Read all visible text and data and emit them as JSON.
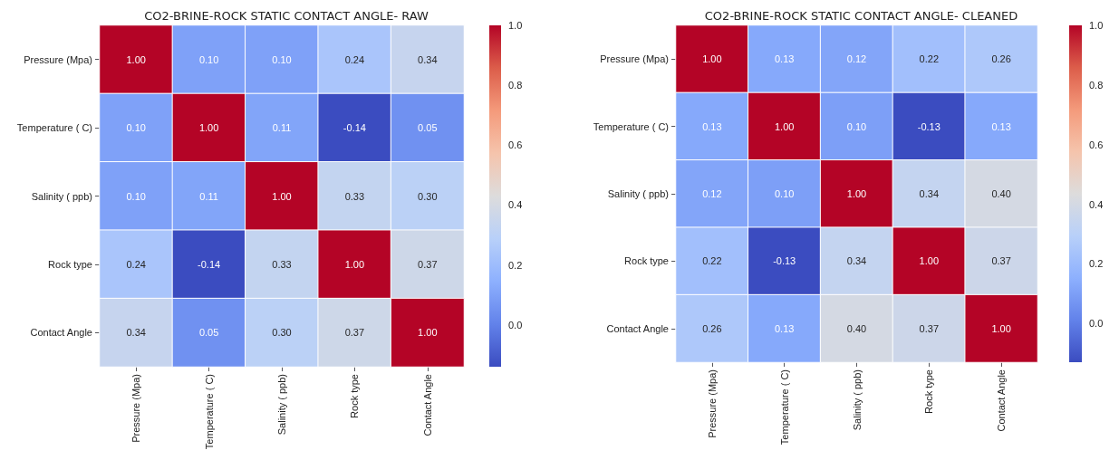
{
  "chart_data": [
    {
      "type": "heatmap",
      "title": "CO2-BRINE-ROCK STATIC CONTACT ANGLE- RAW",
      "categories": [
        "Pressure (Mpa)",
        "Temperature ( C)",
        "Salinity ( ppb)",
        "Rock type",
        "Contact Angle"
      ],
      "y_categories": [
        "Pressure (Mpa)",
        "Temperature ( C)",
        "Salinity ( ppb)",
        "Rock type",
        "Contact Angle"
      ],
      "cells": [
        [
          1.0,
          0.1,
          0.1,
          0.24,
          0.34
        ],
        [
          0.1,
          1.0,
          0.11,
          -0.14,
          0.05
        ],
        [
          0.1,
          0.11,
          1.0,
          0.33,
          0.3
        ],
        [
          0.24,
          -0.14,
          0.33,
          1.0,
          0.37
        ],
        [
          0.34,
          0.05,
          0.3,
          0.37,
          1.0
        ]
      ],
      "cell_labels": [
        [
          "1.00",
          "0.10",
          "0.10",
          "0.24",
          "0.34"
        ],
        [
          "0.10",
          "1.00",
          "0.11",
          "-0.14",
          "0.05"
        ],
        [
          "0.10",
          "0.11",
          "1.00",
          "0.33",
          "0.30"
        ],
        [
          "0.24",
          "-0.14",
          "0.33",
          "1.00",
          "0.37"
        ],
        [
          "0.34",
          "0.05",
          "0.30",
          "0.37",
          "1.00"
        ]
      ],
      "clim": [
        -0.14,
        1.0
      ],
      "cticks": [
        {
          "value": 0,
          "label": "0.0"
        },
        {
          "value": 0.2,
          "label": "0.2"
        },
        {
          "value": 0.4,
          "label": "0.4"
        },
        {
          "value": 0.6,
          "label": "0.6"
        },
        {
          "value": 0.8,
          "label": "0.8"
        },
        {
          "value": 1,
          "label": "1.0"
        }
      ]
    },
    {
      "type": "heatmap",
      "title": "CO2-BRINE-ROCK STATIC CONTACT ANGLE- CLEANED",
      "categories": [
        "Pressure (Mpa)",
        "Temperature ( C)",
        "Salinity ( ppb)",
        "Rock type",
        "Contact Angle"
      ],
      "y_categories": [
        "Pressure (Mpa)",
        "Temperature ( C)",
        "Salinity ( ppb)",
        "Rock type",
        "Contact Angle"
      ],
      "cells": [
        [
          1.0,
          0.13,
          0.12,
          0.22,
          0.26
        ],
        [
          0.13,
          1.0,
          0.1,
          -0.13,
          0.13
        ],
        [
          0.12,
          0.1,
          1.0,
          0.34,
          0.4
        ],
        [
          0.22,
          -0.13,
          0.34,
          1.0,
          0.37
        ],
        [
          0.26,
          0.13,
          0.4,
          0.37,
          1.0
        ]
      ],
      "cell_labels": [
        [
          "1.00",
          "0.13",
          "0.12",
          "0.22",
          "0.26"
        ],
        [
          "0.13",
          "1.00",
          "0.10",
          "-0.13",
          "0.13"
        ],
        [
          "0.12",
          "0.10",
          "1.00",
          "0.34",
          "0.40"
        ],
        [
          "0.22",
          "-0.13",
          "0.34",
          "1.00",
          "0.37"
        ],
        [
          "0.26",
          "0.13",
          "0.40",
          "0.37",
          "1.00"
        ]
      ],
      "clim": [
        -0.13,
        1.0
      ],
      "cticks": [
        {
          "value": 0,
          "label": "0.0"
        },
        {
          "value": 0.2,
          "label": "0.2"
        },
        {
          "value": 0.4,
          "label": "0.4"
        },
        {
          "value": 0.6,
          "label": "0.6"
        },
        {
          "value": 0.8,
          "label": "0.8"
        },
        {
          "value": 1,
          "label": "1.0"
        }
      ]
    }
  ]
}
